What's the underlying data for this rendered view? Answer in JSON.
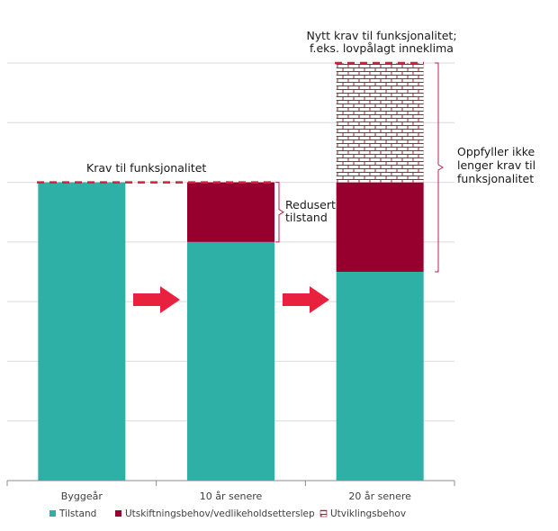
{
  "chart_data": {
    "type": "bar",
    "stacked": true,
    "categories": [
      "Byggeår",
      "10 år senere",
      "20 år senere"
    ],
    "series": [
      {
        "name": "Tilstand",
        "values": [
          5,
          4,
          3.5
        ],
        "color": "#2eb0a6",
        "pattern": "solid"
      },
      {
        "name": "Utskiftningsbehov/vedlikeholdsetterslep",
        "values": [
          0,
          1,
          1.5
        ],
        "color": "#97002e",
        "pattern": "solid"
      },
      {
        "name": "Utviklingsbehov",
        "values": [
          0,
          0,
          2
        ],
        "color": "#97002e",
        "pattern": "brick"
      }
    ],
    "ylim": [
      0,
      7
    ],
    "grid": true,
    "legend_position": "bottom",
    "reference_lines": [
      {
        "value": 5,
        "color": "#d0213f",
        "style": "dashed"
      },
      {
        "value": 7,
        "color": "#d0213f",
        "style": "dashed"
      }
    ],
    "annotations": {
      "krav": "Krav til funksjonalitet",
      "redusert": [
        "Redusert",
        "tilstand"
      ],
      "nytt_krav": [
        "Nytt krav til funksjonalitet;",
        "f.eks. lovpålagt inneklima"
      ],
      "oppfyller": [
        "Oppfyller ikke",
        "lenger krav til",
        "funksjonalitet"
      ]
    },
    "arrow_color": "#e8213f"
  }
}
